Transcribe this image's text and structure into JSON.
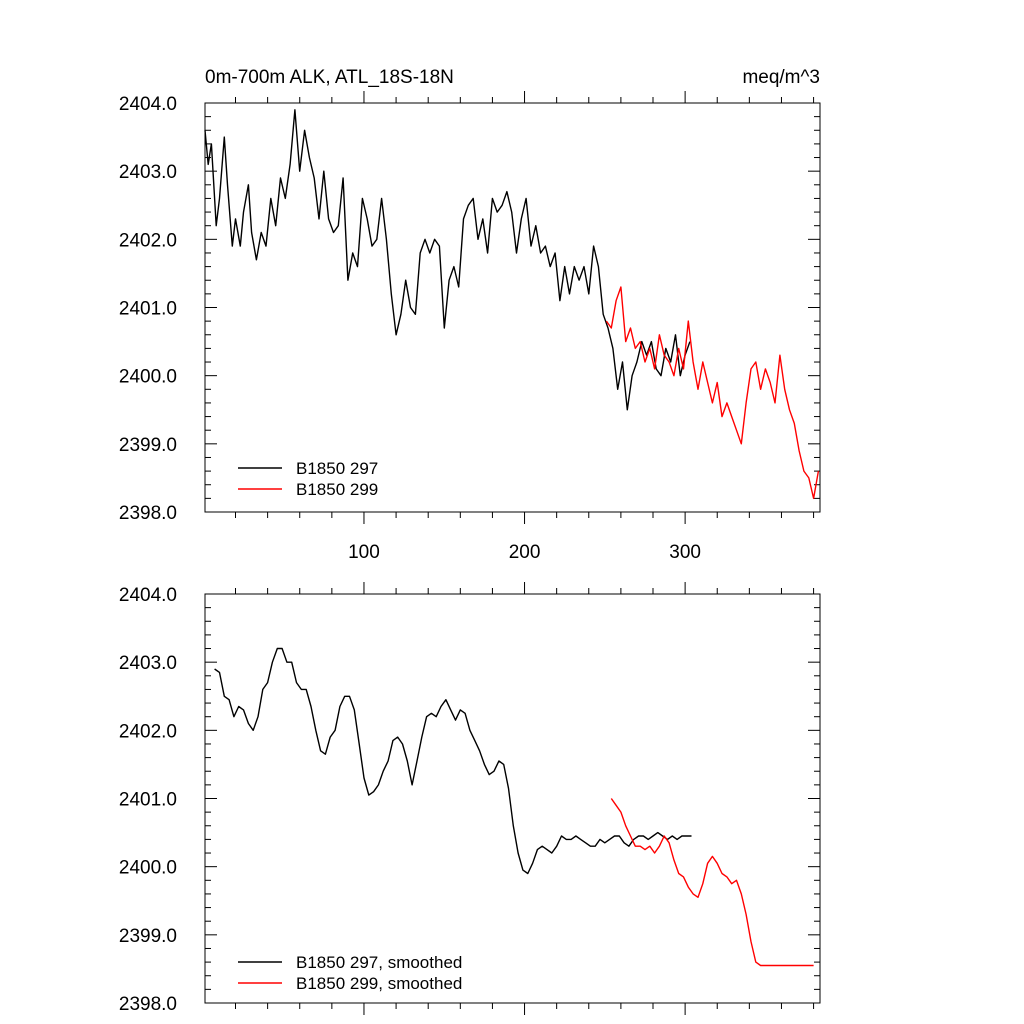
{
  "chart_data": [
    {
      "type": "line",
      "title": "0m-700m ALK, ATL_18S-18N",
      "units": "meq/m^3",
      "xlabel": "",
      "ylabel": "",
      "xlim": [
        1,
        384
      ],
      "ylim": [
        2398.0,
        2404.0
      ],
      "xticks": [
        100,
        200,
        300
      ],
      "xtick_labels": [
        "100",
        "200",
        "300"
      ],
      "yticks": [
        2398.0,
        2399.0,
        2400.0,
        2401.0,
        2402.0,
        2403.0,
        2404.0
      ],
      "ytick_labels": [
        "2398.0",
        "2399.0",
        "2400.0",
        "2401.0",
        "2402.0",
        "2403.0",
        "2404.0"
      ],
      "legend_position": "bottom-left",
      "series": [
        {
          "name": "B1850 297",
          "color": "#000000",
          "x": [
            1,
            3,
            5,
            8,
            10,
            13,
            15,
            18,
            20,
            23,
            25,
            28,
            30,
            33,
            36,
            39,
            42,
            45,
            48,
            51,
            54,
            57,
            60,
            63,
            66,
            69,
            72,
            75,
            78,
            81,
            84,
            87,
            90,
            93,
            96,
            99,
            102,
            105,
            108,
            111,
            114,
            117,
            120,
            123,
            126,
            129,
            132,
            135,
            138,
            141,
            144,
            147,
            150,
            153,
            156,
            159,
            162,
            165,
            168,
            171,
            174,
            177,
            180,
            183,
            186,
            189,
            192,
            195,
            198,
            201,
            204,
            207,
            210,
            213,
            216,
            219,
            222,
            225,
            228,
            231,
            234,
            237,
            240,
            243,
            246,
            249,
            252,
            255,
            258,
            261,
            264,
            267,
            270,
            273,
            276,
            279,
            282,
            285,
            288,
            291,
            294,
            297,
            300,
            303
          ],
          "y": [
            2403.6,
            2403.1,
            2403.4,
            2402.2,
            2402.6,
            2403.5,
            2402.8,
            2401.9,
            2402.3,
            2401.9,
            2402.4,
            2402.8,
            2402.1,
            2401.7,
            2402.1,
            2401.9,
            2402.6,
            2402.2,
            2402.9,
            2402.6,
            2403.1,
            2403.9,
            2403.0,
            2403.6,
            2403.2,
            2402.9,
            2402.3,
            2403.0,
            2402.3,
            2402.1,
            2402.2,
            2402.9,
            2401.4,
            2401.8,
            2401.6,
            2402.6,
            2402.3,
            2401.9,
            2402.0,
            2402.6,
            2402.0,
            2401.2,
            2400.6,
            2400.9,
            2401.4,
            2401.0,
            2400.9,
            2401.8,
            2402.0,
            2401.8,
            2402.0,
            2401.9,
            2400.7,
            2401.4,
            2401.6,
            2401.3,
            2402.3,
            2402.5,
            2402.6,
            2402.0,
            2402.3,
            2401.8,
            2402.6,
            2402.4,
            2402.5,
            2402.7,
            2402.4,
            2401.8,
            2402.3,
            2402.6,
            2401.9,
            2402.2,
            2401.8,
            2401.9,
            2401.6,
            2401.8,
            2401.1,
            2401.6,
            2401.2,
            2401.6,
            2401.4,
            2401.6,
            2401.2,
            2401.9,
            2401.6,
            2400.9,
            2400.7,
            2400.4,
            2399.8,
            2400.2,
            2399.5,
            2400.0,
            2400.2,
            2400.5,
            2400.3,
            2400.5,
            2400.1,
            2400.0,
            2400.4,
            2400.2,
            2400.6,
            2400.0,
            2400.3,
            2400.5
          ]
        },
        {
          "name": "B1850 299",
          "color": "#ff0000",
          "x": [
            251,
            254,
            257,
            260,
            263,
            266,
            269,
            272,
            275,
            278,
            281,
            284,
            287,
            290,
            293,
            296,
            299,
            302,
            305,
            308,
            311,
            314,
            317,
            320,
            323,
            326,
            329,
            332,
            335,
            338,
            341,
            344,
            347,
            350,
            353,
            356,
            359,
            362,
            365,
            368,
            371,
            374,
            377,
            380,
            383
          ],
          "y": [
            2400.8,
            2400.7,
            2401.1,
            2401.3,
            2400.5,
            2400.7,
            2400.4,
            2400.5,
            2400.2,
            2400.4,
            2400.1,
            2400.6,
            2400.3,
            2400.2,
            2400.0,
            2400.4,
            2400.1,
            2400.8,
            2400.2,
            2399.8,
            2400.2,
            2399.9,
            2399.6,
            2399.9,
            2399.4,
            2399.6,
            2399.4,
            2399.2,
            2399.0,
            2399.6,
            2400.1,
            2400.2,
            2399.8,
            2400.1,
            2399.9,
            2399.6,
            2400.3,
            2399.8,
            2399.5,
            2399.3,
            2398.9,
            2398.6,
            2398.5,
            2398.2,
            2398.6
          ]
        }
      ]
    },
    {
      "type": "line",
      "title": "",
      "xlabel": "",
      "ylabel": "",
      "xlim": [
        1,
        384
      ],
      "ylim": [
        2398.0,
        2404.0
      ],
      "xticks": [
        100,
        200,
        300
      ],
      "xtick_labels": [],
      "yticks": [
        2398.0,
        2399.0,
        2400.0,
        2401.0,
        2402.0,
        2403.0,
        2404.0
      ],
      "ytick_labels": [
        "2398.0",
        "2399.0",
        "2400.0",
        "2401.0",
        "2402.0",
        "2403.0",
        "2404.0"
      ],
      "legend_position": "bottom-left",
      "series": [
        {
          "name": "B1850 297, smoothed",
          "color": "#000000",
          "x": [
            7,
            10,
            13,
            16,
            19,
            22,
            25,
            28,
            31,
            34,
            37,
            40,
            43,
            46,
            49,
            52,
            55,
            58,
            61,
            64,
            67,
            70,
            73,
            76,
            79,
            82,
            85,
            88,
            91,
            94,
            97,
            100,
            103,
            106,
            109,
            112,
            115,
            118,
            121,
            124,
            127,
            130,
            133,
            136,
            139,
            142,
            145,
            148,
            151,
            154,
            157,
            160,
            163,
            166,
            169,
            172,
            175,
            178,
            181,
            184,
            187,
            190,
            193,
            196,
            199,
            202,
            205,
            208,
            211,
            214,
            217,
            220,
            223,
            226,
            229,
            232,
            235,
            238,
            241,
            244,
            247,
            250,
            253,
            256,
            259,
            262,
            265,
            268,
            271,
            274,
            277,
            280,
            283,
            286,
            289,
            292,
            295,
            298,
            301,
            304
          ],
          "y": [
            2402.9,
            2402.85,
            2402.5,
            2402.45,
            2402.2,
            2402.35,
            2402.3,
            2402.1,
            2402.0,
            2402.2,
            2402.6,
            2402.7,
            2403.0,
            2403.2,
            2403.2,
            2403.0,
            2403.0,
            2402.7,
            2402.6,
            2402.6,
            2402.35,
            2402.0,
            2401.7,
            2401.65,
            2401.9,
            2402.0,
            2402.35,
            2402.5,
            2402.5,
            2402.3,
            2401.8,
            2401.3,
            2401.05,
            2401.1,
            2401.2,
            2401.4,
            2401.55,
            2401.85,
            2401.9,
            2401.8,
            2401.55,
            2401.2,
            2401.55,
            2401.9,
            2402.2,
            2402.25,
            2402.2,
            2402.35,
            2402.45,
            2402.3,
            2402.15,
            2402.3,
            2402.25,
            2402.0,
            2401.85,
            2401.7,
            2401.5,
            2401.35,
            2401.4,
            2401.55,
            2401.5,
            2401.15,
            2400.6,
            2400.2,
            2399.95,
            2399.9,
            2400.05,
            2400.25,
            2400.3,
            2400.25,
            2400.2,
            2400.3,
            2400.45,
            2400.4,
            2400.4,
            2400.45,
            2400.4,
            2400.35,
            2400.3,
            2400.3,
            2400.4,
            2400.35,
            2400.4,
            2400.45,
            2400.45,
            2400.35,
            2400.3,
            2400.4,
            2400.45,
            2400.45,
            2400.4,
            2400.45,
            2400.5,
            2400.45,
            2400.4,
            2400.45,
            2400.4,
            2400.45,
            2400.45,
            2400.45
          ]
        },
        {
          "name": "B1850 299, smoothed",
          "color": "#ff0000",
          "x": [
            254,
            257,
            260,
            263,
            266,
            269,
            272,
            275,
            278,
            281,
            284,
            287,
            290,
            293,
            296,
            299,
            302,
            305,
            308,
            311,
            314,
            317,
            320,
            323,
            326,
            329,
            332,
            335,
            338,
            341,
            344,
            347,
            350,
            353,
            356,
            359,
            362,
            365,
            368,
            371,
            374,
            377,
            380
          ],
          "y": [
            2401.0,
            2400.9,
            2400.8,
            2400.6,
            2400.45,
            2400.3,
            2400.3,
            2400.25,
            2400.3,
            2400.2,
            2400.3,
            2400.45,
            2400.35,
            2400.1,
            2399.9,
            2399.85,
            2399.7,
            2399.6,
            2399.55,
            2399.75,
            2400.05,
            2400.15,
            2400.05,
            2399.9,
            2399.85,
            2399.75,
            2399.8,
            2399.6,
            2399.3,
            2398.9,
            2398.6,
            2398.55,
            2398.55,
            2398.55,
            2398.55,
            2398.55,
            2398.55,
            2398.55,
            2398.55,
            2398.55,
            2398.55,
            2398.55,
            2398.55
          ]
        }
      ]
    }
  ]
}
